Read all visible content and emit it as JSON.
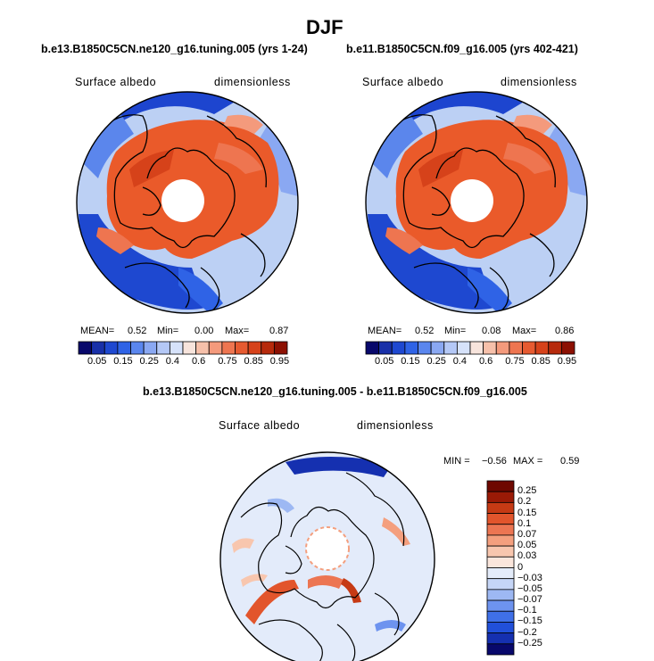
{
  "page": {
    "title": "DJF"
  },
  "colors": {
    "seq": [
      "#08086b",
      "#1830a8",
      "#1e48d0",
      "#2f63e6",
      "#5a86ee",
      "#8aa8f2",
      "#b4c8f6",
      "#d6e2fa",
      "#f7e4dc",
      "#f6c0aa",
      "#f49a7c",
      "#ee7550",
      "#e65a30",
      "#d6421a",
      "#b62a0c",
      "#8c1002"
    ],
    "diff": [
      "#08086b",
      "#1530b0",
      "#2150da",
      "#3f70e8",
      "#6d93ef",
      "#9db8f3",
      "#c6d6f7",
      "#e4ecfa",
      "#fbe6dc",
      "#f8c6ae",
      "#f49f7e",
      "#ec7552",
      "#e2552c",
      "#c63a14",
      "#9a1a06",
      "#6e0800"
    ],
    "land": "#ea5a2a",
    "ocean": "#c8daf5"
  },
  "chart_data": [
    {
      "type": "polar-map",
      "name": "left",
      "case_title": "b.e13.B1850C5CN.ne120_g16.tuning.005 (yrs 1-24)",
      "variable": "Surface albedo",
      "units": "dimensionless",
      "stats": {
        "mean_label": "MEAN=",
        "mean": "0.52",
        "min_label": "Min=",
        "min": "0.00",
        "max_label": "Max=",
        "max": "0.87"
      },
      "colorbar_ticks": [
        "0.05",
        "0.15",
        "0.25",
        "0.4",
        "0.6",
        "0.75",
        "0.85",
        "0.95"
      ]
    },
    {
      "type": "polar-map",
      "name": "right",
      "case_title": "b.e11.B1850C5CN.f09_g16.005 (yrs 402-421)",
      "variable": "Surface albedo",
      "units": "dimensionless",
      "stats": {
        "mean_label": "MEAN=",
        "mean": "0.52",
        "min_label": "Min=",
        "min": "0.08",
        "max_label": "Max=",
        "max": "0.86"
      },
      "colorbar_ticks": [
        "0.05",
        "0.15",
        "0.25",
        "0.4",
        "0.6",
        "0.75",
        "0.85",
        "0.95"
      ]
    },
    {
      "type": "polar-map",
      "name": "difference",
      "case_title": "b.e13.B1850C5CN.ne120_g16.tuning.005 - b.e11.B1850C5CN.f09_g16.005",
      "variable": "Surface albedo",
      "units": "dimensionless",
      "stats": {
        "min_label": "MIN =",
        "min": "−0.56",
        "max_label": "MAX =",
        "max": "0.59"
      },
      "colorbar_ticks": [
        "0.25",
        "0.2",
        "0.15",
        "0.1",
        "0.07",
        "0.05",
        "0.03",
        "0",
        "−0.03",
        "−0.05",
        "−0.07",
        "−0.1",
        "−0.15",
        "−0.2",
        "−0.25"
      ]
    }
  ]
}
